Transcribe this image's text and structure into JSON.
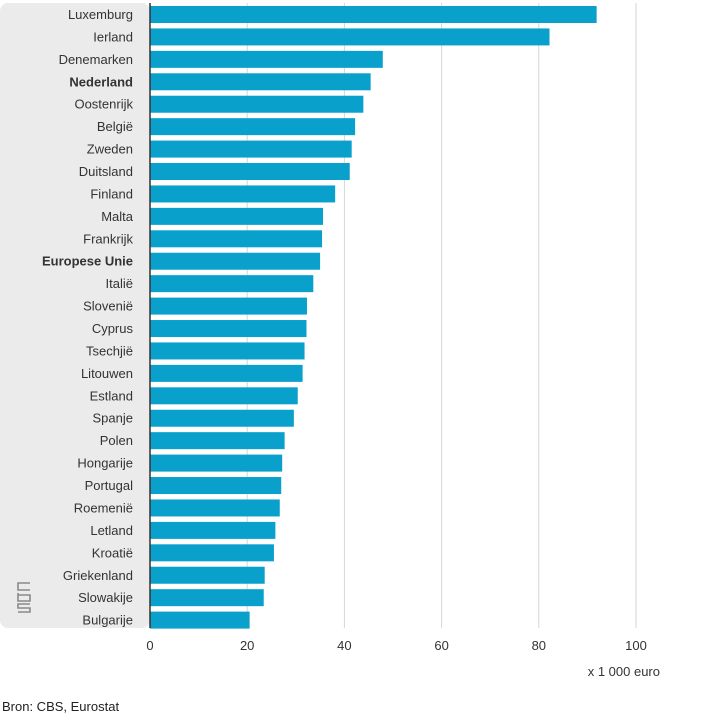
{
  "chart_data": {
    "type": "bar",
    "orientation": "horizontal",
    "categories": [
      "Luxemburg",
      "Ierland",
      "Denemarken",
      "Nederland",
      "Oostenrijk",
      "België",
      "Zweden",
      "Duitsland",
      "Finland",
      "Malta",
      "Frankrijk",
      "Europese Unie",
      "Italië",
      "Slovenië",
      "Cyprus",
      "Tsechjië",
      "Litouwen",
      "Estland",
      "Spanje",
      "Polen",
      "Hongarije",
      "Portugal",
      "Roemenië",
      "Letland",
      "Kroatië",
      "Griekenland",
      "Slowakije",
      "Bulgarije"
    ],
    "highlighted": [
      "Nederland",
      "Europese Unie"
    ],
    "values": [
      91.9,
      82.2,
      47.9,
      45.4,
      43.9,
      42.2,
      41.5,
      41.1,
      38.1,
      35.6,
      35.4,
      35.0,
      33.6,
      32.3,
      32.2,
      31.8,
      31.4,
      30.4,
      29.6,
      27.7,
      27.2,
      27.0,
      26.7,
      25.8,
      25.5,
      23.6,
      23.4,
      20.5
    ],
    "xlim": [
      0,
      100
    ],
    "xticks": [
      "0",
      "20",
      "40",
      "60",
      "80",
      "100"
    ],
    "xlabel": "x 1 000 euro",
    "grid": true,
    "bar_color": "#0aa0cc"
  },
  "source": "Bron: CBS, Eurostat",
  "logo": "cbs"
}
